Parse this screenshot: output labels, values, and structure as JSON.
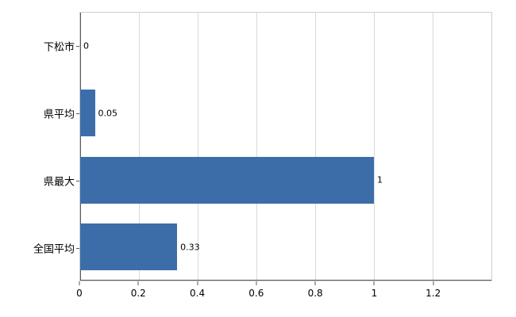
{
  "chart_data": {
    "type": "bar",
    "orientation": "horizontal",
    "title": "",
    "xlabel": "",
    "ylabel": "",
    "categories": [
      "下松市",
      "県平均",
      "県最大",
      "全国平均"
    ],
    "values": [
      0,
      0.05,
      1,
      0.33
    ],
    "value_labels": [
      "0",
      "0.05",
      "1",
      "0.33"
    ],
    "x_ticks": [
      0,
      0.2,
      0.4,
      0.6,
      0.8,
      1,
      1.2
    ],
    "x_tick_labels": [
      "0",
      "0.2",
      "0.4",
      "0.6",
      "0.8",
      "1",
      "1.2"
    ],
    "xlim": [
      0,
      1.4
    ],
    "grid": true,
    "legend": "none",
    "bar_color": "#3c6da8",
    "gridline_color": "#d9d9d9",
    "axis_color": "#5a5a5a",
    "background_color": "#ffffff"
  }
}
